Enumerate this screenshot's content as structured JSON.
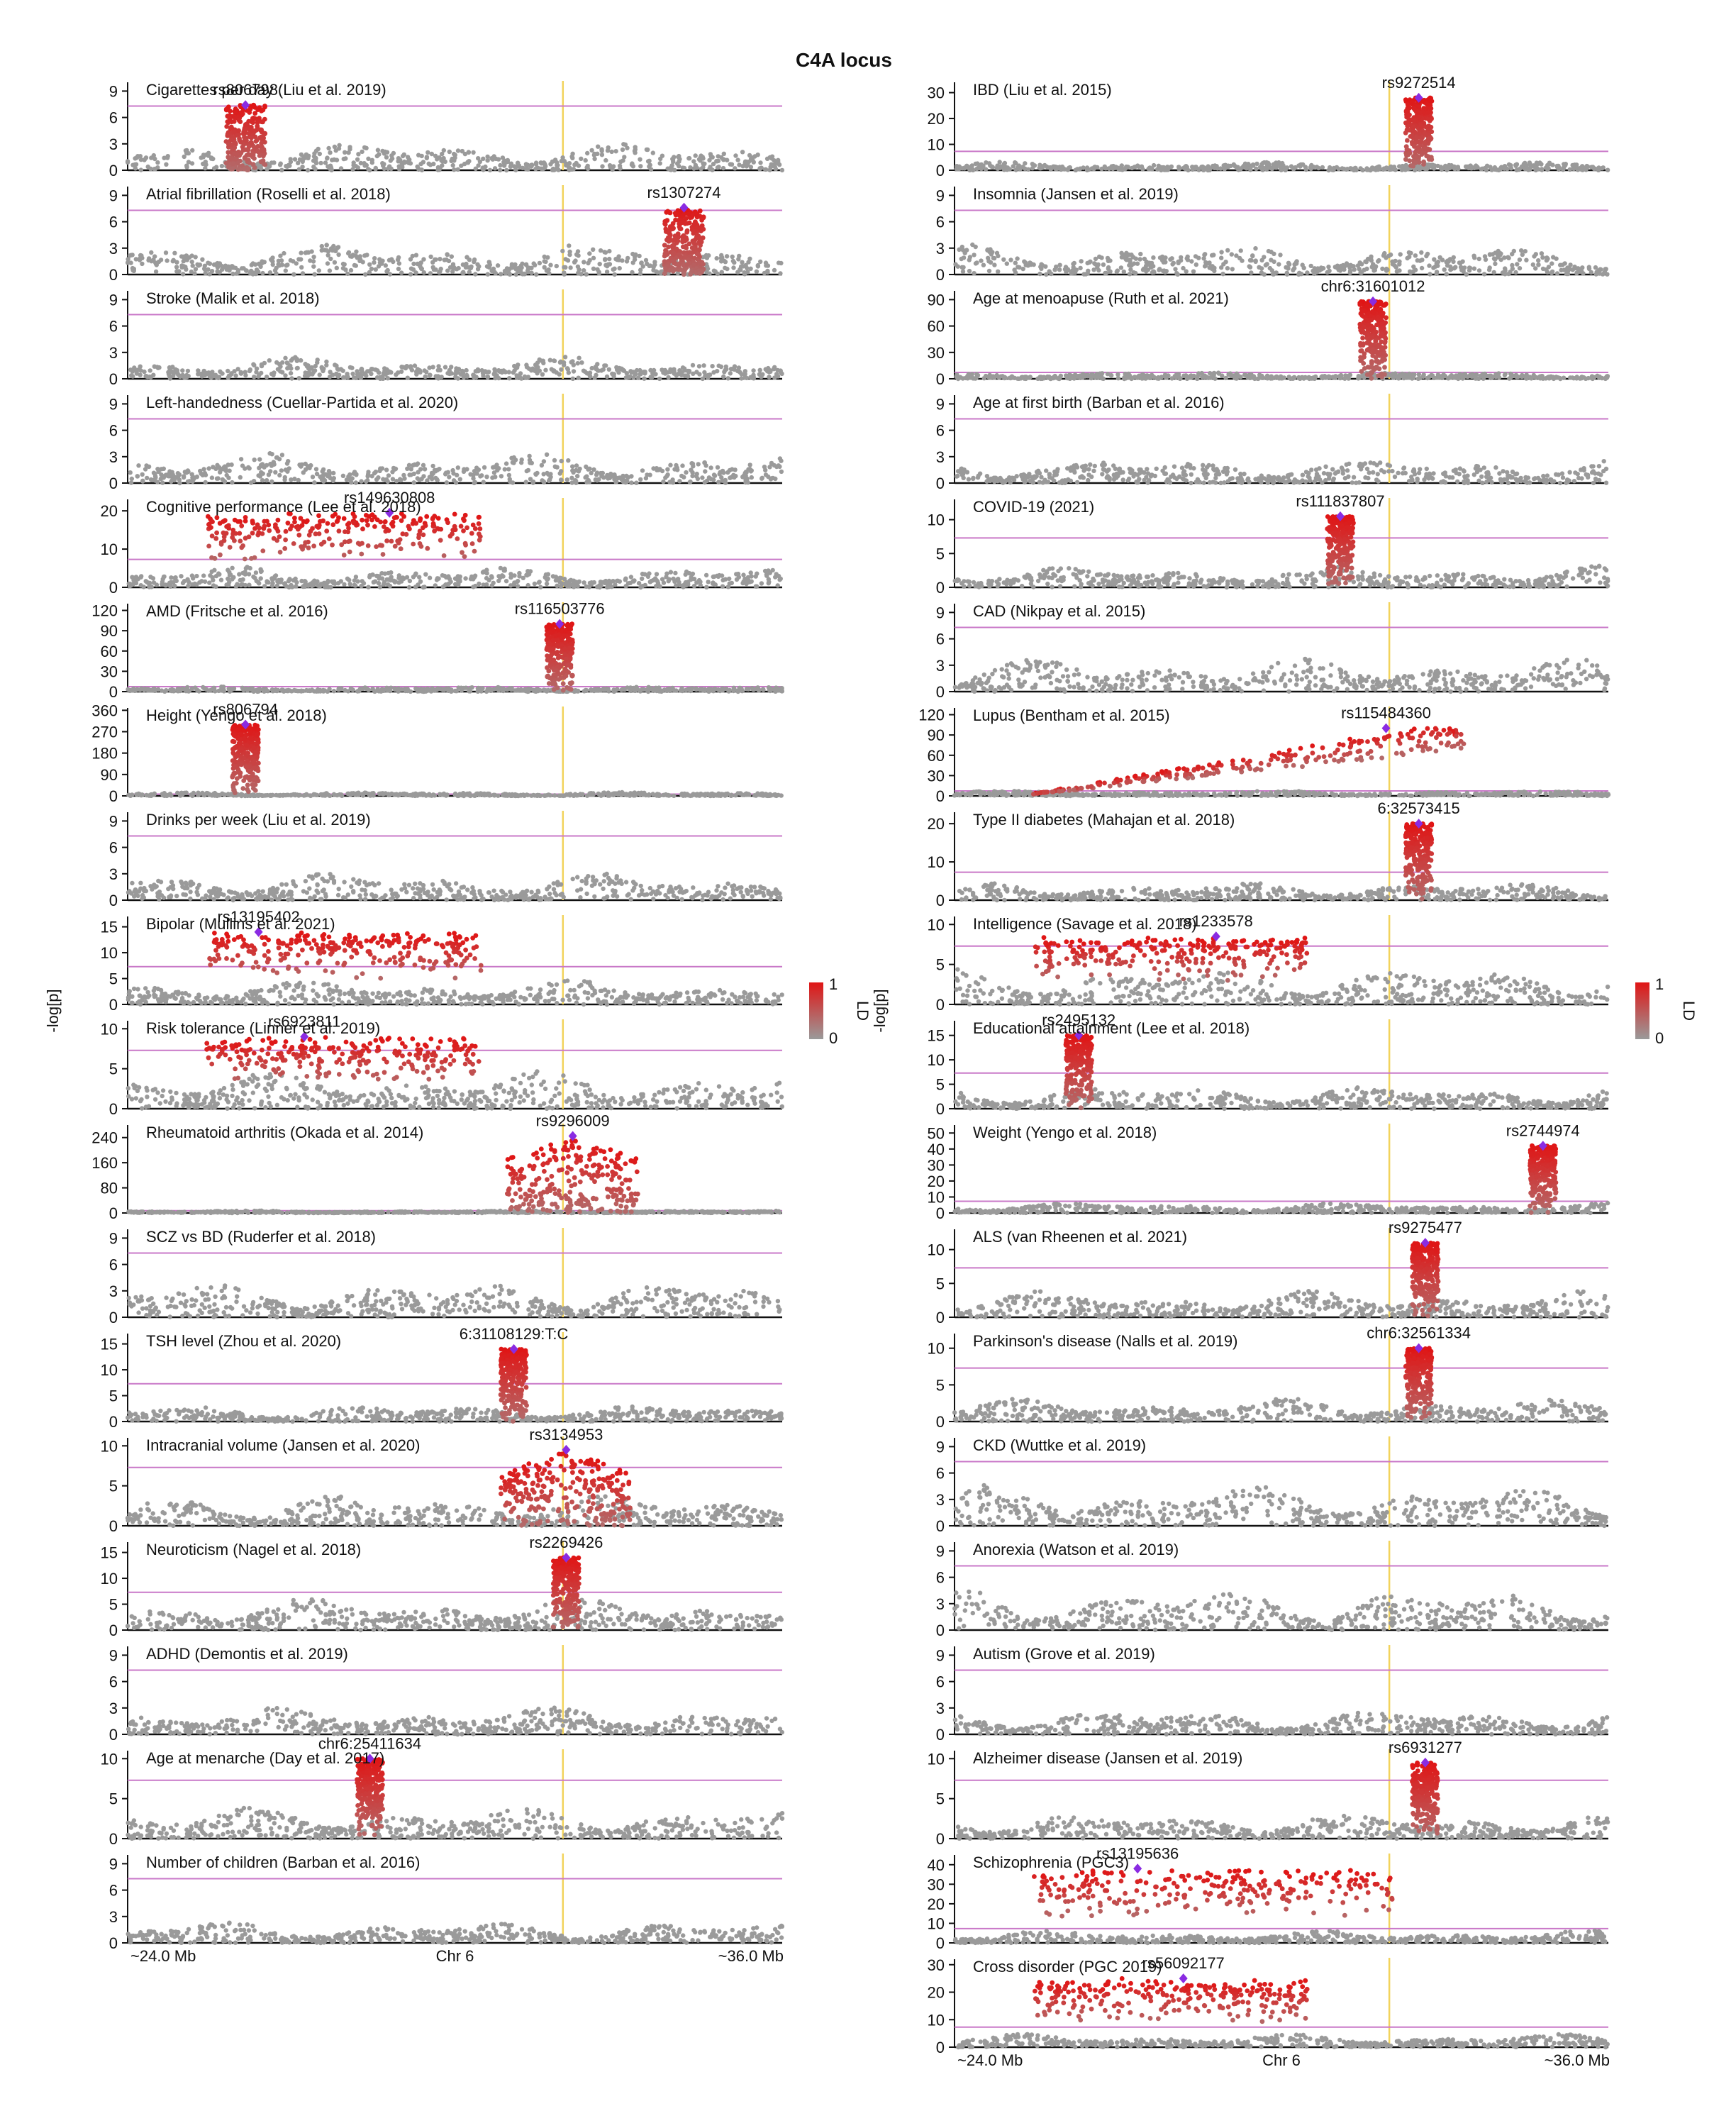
{
  "title": "C4A locus",
  "ylabel": "-log[p]",
  "colorbar": {
    "label": "LD",
    "max": "1",
    "min": "0",
    "high_color": "#e01515",
    "low_color": "#9a9a9a"
  },
  "x_axis": {
    "left": "~24.0 Mb",
    "mid": "Chr 6",
    "right": "~36.0 Mb"
  },
  "colors": {
    "significance_line": "#c978c8",
    "marker_line": "#f2d35c",
    "lead_snp": "#8a2be2",
    "null_point": "#9a9a9a",
    "ld_point": "#e01515",
    "axis": "#111111"
  },
  "chart_data": [
    {
      "column": "left",
      "type": "scatter",
      "x_range": [
        "~24.0 Mb",
        "~36.0 Mb"
      ],
      "panels": [
        {
          "title": "Cigarettes per day (Liu et al. 2019)",
          "lead": "rs806798",
          "lead_x": 0.18,
          "lead_y": 7.4,
          "yticks": [
            0,
            3,
            6,
            9
          ],
          "ymax": 10,
          "bg": 2.0,
          "peak": null
        },
        {
          "title": "Atrial fibrillation (Roselli et al. 2018)",
          "lead": "rs1307274",
          "lead_x": 0.85,
          "lead_y": 7.6,
          "yticks": [
            0,
            3,
            6,
            9
          ],
          "ymax": 10,
          "bg": 2.3,
          "peak": null
        },
        {
          "title": "Stroke (Malik et al. 2018)",
          "lead": "",
          "lead_x": null,
          "lead_y": null,
          "yticks": [
            0,
            3,
            6,
            9
          ],
          "ymax": 10,
          "bg": 1.6,
          "peak": null
        },
        {
          "title": "Left-handedness (Cuellar-Partida et al. 2020)",
          "lead": "",
          "lead_x": null,
          "lead_y": null,
          "yticks": [
            0,
            3,
            6,
            9
          ],
          "ymax": 10,
          "bg": 2.2,
          "peak": null
        },
        {
          "title": "Cognitive performance (Lee et al. 2018)",
          "lead": "rs149630808",
          "lead_x": 0.4,
          "lead_y": 19.5,
          "yticks": [
            0,
            10,
            20
          ],
          "ymax": 23,
          "bg": 3.5,
          "peak": "plateau-left"
        },
        {
          "title": "AMD (Fritsche et al. 2016)",
          "lead": "rs116503776",
          "lead_x": 0.66,
          "lead_y": 100,
          "yticks": [
            0,
            30,
            60,
            90,
            120
          ],
          "ymax": 130,
          "bg": 5,
          "peak": "spike"
        },
        {
          "title": "Height (Yengo et al. 2018)",
          "lead": "rs806794",
          "lead_x": 0.18,
          "lead_y": 300,
          "yticks": [
            0,
            90,
            180,
            270,
            360
          ],
          "ymax": 370,
          "bg": 10,
          "peak": "spike"
        },
        {
          "title": "Drinks per week (Liu et al. 2019)",
          "lead": "",
          "lead_x": null,
          "lead_y": null,
          "yticks": [
            0,
            3,
            6,
            9
          ],
          "ymax": 10,
          "bg": 2.0,
          "peak": null
        },
        {
          "title": "Bipolar (Mullins et al. 2021)",
          "lead": "rs13195402",
          "lead_x": 0.2,
          "lead_y": 14,
          "yticks": [
            0,
            5,
            10,
            15
          ],
          "ymax": 17,
          "bg": 3,
          "peak": "plateau-left"
        },
        {
          "title": "Risk tolerance (Linner et al. 2019)",
          "lead": "rs6923811",
          "lead_x": 0.27,
          "lead_y": 9,
          "yticks": [
            0,
            5,
            10
          ],
          "ymax": 11,
          "bg": 3,
          "peak": "plateau-left"
        },
        {
          "title": "Rheumatoid arthritis (Okada et al. 2014)",
          "lead": "rs9296009",
          "lead_x": 0.68,
          "lead_y": 245,
          "yticks": [
            0,
            80,
            160,
            240
          ],
          "ymax": 280,
          "bg": 5,
          "peak": "broad"
        },
        {
          "title": "SCZ vs BD (Ruderfer et al. 2018)",
          "lead": "",
          "lead_x": null,
          "lead_y": null,
          "yticks": [
            0,
            3,
            6,
            9
          ],
          "ymax": 10,
          "bg": 2.6,
          "peak": null
        },
        {
          "title": "TSH level (Zhou et al. 2020)",
          "lead": "6:31108129:T:C",
          "lead_x": 0.59,
          "lead_y": 14,
          "yticks": [
            0,
            5,
            10,
            15
          ],
          "ymax": 17,
          "bg": 2,
          "peak": "spike"
        },
        {
          "title": "Intracranial volume (Jansen et al. 2020)",
          "lead": "rs3134953",
          "lead_x": 0.67,
          "lead_y": 9.5,
          "yticks": [
            0,
            5,
            10
          ],
          "ymax": 11,
          "bg": 2.5,
          "peak": "broad"
        },
        {
          "title": "Neuroticism (Nagel et al. 2018)",
          "lead": "rs2269426",
          "lead_x": 0.67,
          "lead_y": 14,
          "yticks": [
            0,
            5,
            10,
            15
          ],
          "ymax": 17,
          "bg": 4,
          "peak": "spike"
        },
        {
          "title": "ADHD (Demontis et al. 2019)",
          "lead": "",
          "lead_x": null,
          "lead_y": null,
          "yticks": [
            0,
            3,
            6,
            9
          ],
          "ymax": 10,
          "bg": 2.0,
          "peak": null
        },
        {
          "title": "Age at menarche (Day et al. 2017)",
          "lead": "chr6:25411634",
          "lead_x": 0.37,
          "lead_y": 10,
          "yticks": [
            0,
            5,
            10
          ],
          "ymax": 11,
          "bg": 2.5,
          "peak": "spike"
        },
        {
          "title": "Number of children (Barban et al. 2016)",
          "lead": "",
          "lead_x": null,
          "lead_y": null,
          "yticks": [
            0,
            3,
            6,
            9
          ],
          "ymax": 10,
          "bg": 1.5,
          "peak": null
        }
      ]
    },
    {
      "column": "right",
      "type": "scatter",
      "x_range": [
        "~24.0 Mb",
        "~36.0 Mb"
      ],
      "panels": [
        {
          "title": "IBD (Liu et al. 2015)",
          "lead": "rs9272514",
          "lead_x": 0.71,
          "lead_y": 28,
          "yticks": [
            0,
            10,
            20,
            30
          ],
          "ymax": 34,
          "bg": 2,
          "peak": "spike"
        },
        {
          "title": "Insomnia (Jansen et al. 2019)",
          "lead": "",
          "lead_x": null,
          "lead_y": null,
          "yticks": [
            0,
            3,
            6,
            9
          ],
          "ymax": 10,
          "bg": 2.2,
          "peak": null
        },
        {
          "title": "Age at menoapuse (Ruth et al. 2021)",
          "lead": "chr6:31601012",
          "lead_x": 0.64,
          "lead_y": 88,
          "yticks": [
            0,
            30,
            60,
            90
          ],
          "ymax": 100,
          "bg": 5,
          "peak": "spike"
        },
        {
          "title": "Age at first birth (Barban et al. 2016)",
          "lead": "",
          "lead_x": null,
          "lead_y": null,
          "yticks": [
            0,
            3,
            6,
            9
          ],
          "ymax": 10,
          "bg": 1.8,
          "peak": null
        },
        {
          "title": "COVID-19 (2021)",
          "lead": "rs111837807",
          "lead_x": 0.59,
          "lead_y": 10.5,
          "yticks": [
            0,
            5,
            10
          ],
          "ymax": 13,
          "bg": 2,
          "peak": "spike"
        },
        {
          "title": "CAD (Nikpay et al. 2015)",
          "lead": "",
          "lead_x": null,
          "lead_y": null,
          "yticks": [
            0,
            3,
            6,
            9
          ],
          "ymax": 10,
          "bg": 2.4,
          "peak": null
        },
        {
          "title": "Lupus (Bentham et al. 2015)",
          "lead": "rs115484360",
          "lead_x": 0.66,
          "lead_y": 100,
          "yticks": [
            0,
            30,
            60,
            90,
            120
          ],
          "ymax": 130,
          "bg": 5,
          "peak": "ramp"
        },
        {
          "title": "Type II diabetes (Mahajan et al. 2018)",
          "lead": "6:32573415",
          "lead_x": 0.71,
          "lead_y": 20,
          "yticks": [
            0,
            10,
            20
          ],
          "ymax": 23,
          "bg": 3,
          "peak": "spike"
        },
        {
          "title": "Intelligence (Savage et al. 2018)",
          "lead": "rs1233578",
          "lead_x": 0.4,
          "lead_y": 8.5,
          "yticks": [
            0,
            5,
            10
          ],
          "ymax": 11,
          "bg": 3,
          "peak": "plateau-left"
        },
        {
          "title": "Educational attainment (Lee et al. 2018)",
          "lead": "rs2495132",
          "lead_x": 0.19,
          "lead_y": 15,
          "yticks": [
            0,
            5,
            10,
            15
          ],
          "ymax": 18,
          "bg": 3,
          "peak": "spike"
        },
        {
          "title": "Weight (Yengo et al. 2018)",
          "lead": "rs2744974",
          "lead_x": 0.9,
          "lead_y": 42,
          "yticks": [
            0,
            10,
            20,
            30,
            40,
            50
          ],
          "ymax": 55,
          "bg": 4,
          "peak": "spike"
        },
        {
          "title": "ALS (van Rheenen et al. 2021)",
          "lead": "rs9275477",
          "lead_x": 0.72,
          "lead_y": 11,
          "yticks": [
            0,
            5,
            10
          ],
          "ymax": 13,
          "bg": 2.5,
          "peak": "spike"
        },
        {
          "title": "Parkinson's disease (Nalls et al. 2019)",
          "lead": "chr6:32561334",
          "lead_x": 0.71,
          "lead_y": 10,
          "yticks": [
            0,
            5,
            10
          ],
          "ymax": 12,
          "bg": 2,
          "peak": "spike"
        },
        {
          "title": "CKD (Wuttke et al. 2019)",
          "lead": "",
          "lead_x": null,
          "lead_y": null,
          "yticks": [
            0,
            3,
            6,
            9
          ],
          "ymax": 10,
          "bg": 3,
          "peak": null
        },
        {
          "title": "Anorexia (Watson et al. 2019)",
          "lead": "",
          "lead_x": null,
          "lead_y": null,
          "yticks": [
            0,
            3,
            6,
            9
          ],
          "ymax": 10,
          "bg": 3,
          "peak": null
        },
        {
          "title": "Autism (Grove et al. 2019)",
          "lead": "",
          "lead_x": null,
          "lead_y": null,
          "yticks": [
            0,
            3,
            6,
            9
          ],
          "ymax": 10,
          "bg": 1.8,
          "peak": null
        },
        {
          "title": "Alzheimer disease (Jansen et al. 2019)",
          "lead": "rs6931277",
          "lead_x": 0.72,
          "lead_y": 9.5,
          "yticks": [
            0,
            5,
            10
          ],
          "ymax": 11,
          "bg": 2,
          "peak": "spike"
        },
        {
          "title": "Schizophrenia (PGC3)",
          "lead": "rs13195636",
          "lead_x": 0.28,
          "lead_y": 38,
          "yticks": [
            0,
            10,
            20,
            30,
            40
          ],
          "ymax": 45,
          "bg": 4,
          "peak": "plateau-wide"
        },
        {
          "title": "Cross disorder (PGC 2019)",
          "lead": "rs56092177",
          "lead_x": 0.35,
          "lead_y": 25,
          "yticks": [
            0,
            10,
            20,
            30
          ],
          "ymax": 32,
          "bg": 3,
          "peak": "plateau-left"
        }
      ]
    }
  ]
}
